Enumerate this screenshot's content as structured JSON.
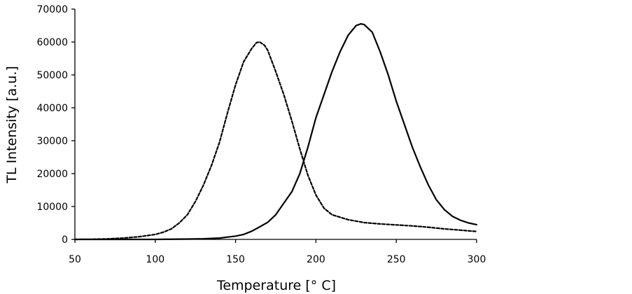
{
  "chart_data": {
    "type": "line",
    "title": "",
    "xlabel": "Temperature [° C]",
    "ylabel": "TL Intensity [a.u.]",
    "xlim": [
      50,
      300
    ],
    "ylim": [
      0,
      70000
    ],
    "x_ticks": [
      50,
      100,
      150,
      200,
      250,
      300
    ],
    "y_ticks": [
      0,
      10000,
      20000,
      30000,
      40000,
      50000,
      60000,
      70000
    ],
    "grid": false,
    "legend": "none",
    "series": [
      {
        "style": "dashed",
        "x": [
          50,
          60,
          70,
          80,
          90,
          100,
          105,
          110,
          115,
          120,
          125,
          130,
          135,
          140,
          145,
          150,
          155,
          160,
          163,
          165,
          168,
          170,
          175,
          180,
          185,
          190,
          195,
          200,
          205,
          210,
          220,
          230,
          240,
          250,
          260,
          270,
          280,
          290,
          300
        ],
        "y": [
          0,
          50,
          150,
          400,
          800,
          1500,
          2200,
          3200,
          5000,
          7500,
          11500,
          16500,
          22500,
          29500,
          38500,
          47000,
          54000,
          58000,
          59800,
          60000,
          59000,
          57500,
          51000,
          44000,
          36000,
          27500,
          19500,
          13500,
          9500,
          7500,
          6000,
          5100,
          4700,
          4400,
          4100,
          3700,
          3200,
          2800,
          2400
        ]
      },
      {
        "style": "solid",
        "x": [
          50,
          100,
          120,
          130,
          140,
          145,
          150,
          155,
          160,
          165,
          170,
          175,
          180,
          185,
          190,
          195,
          200,
          205,
          210,
          215,
          220,
          225,
          228,
          230,
          235,
          240,
          245,
          250,
          255,
          260,
          265,
          270,
          275,
          280,
          285,
          290,
          295,
          300
        ],
        "y": [
          0,
          0,
          100,
          200,
          400,
          700,
          1000,
          1500,
          2500,
          3800,
          5200,
          7500,
          11000,
          14500,
          20000,
          28000,
          37000,
          44000,
          51000,
          57000,
          62000,
          65000,
          65500,
          65300,
          63000,
          57000,
          50000,
          42000,
          35000,
          28000,
          22000,
          16500,
          12000,
          9000,
          7000,
          5800,
          5000,
          4500
        ]
      }
    ]
  }
}
